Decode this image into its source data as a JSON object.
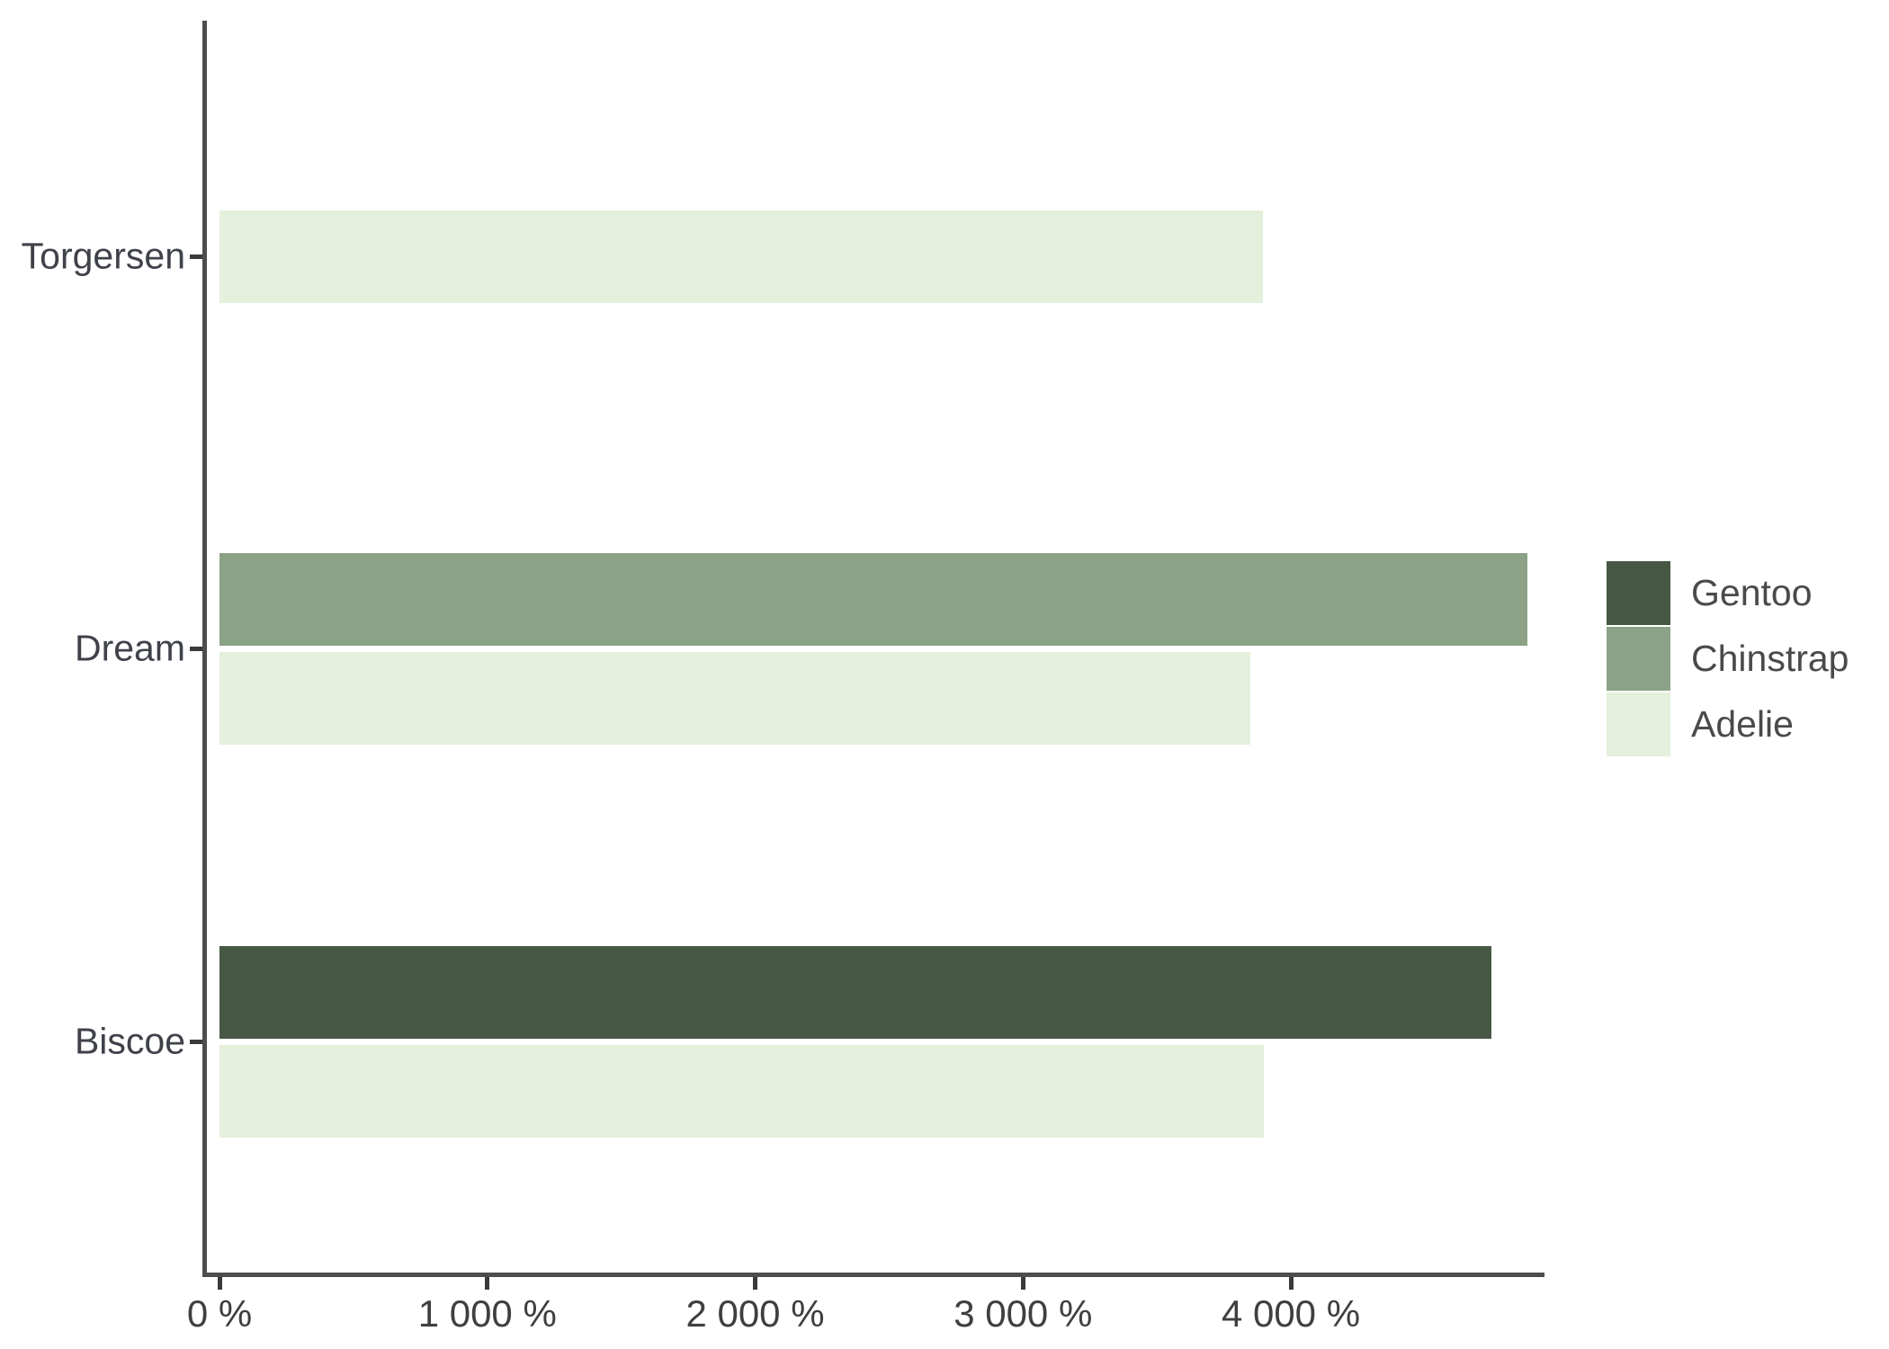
{
  "chart_data": {
    "type": "bar",
    "orientation": "horizontal",
    "title": "",
    "xlabel": "",
    "ylabel": "",
    "value_unit": "percent",
    "x_axis": {
      "min": 0,
      "max_tick": 4000,
      "ticks": [
        0,
        1000,
        2000,
        3000,
        4000
      ],
      "tick_labels": [
        "0 %",
        "1 000 %",
        "2 000 %",
        "3 000 %",
        "4 000 %"
      ]
    },
    "y_categories": [
      "Torgersen",
      "Dream",
      "Biscoe"
    ],
    "groups": [
      {
        "island": "Torgersen",
        "bars": [
          {
            "species": "Adelie",
            "value": 3895
          }
        ]
      },
      {
        "island": "Dream",
        "bars": [
          {
            "species": "Chinstrap",
            "value": 4883
          },
          {
            "species": "Adelie",
            "value": 3850
          }
        ]
      },
      {
        "island": "Biscoe",
        "bars": [
          {
            "species": "Gentoo",
            "value": 4750
          },
          {
            "species": "Adelie",
            "value": 3898
          }
        ]
      }
    ],
    "legend": {
      "position": "right",
      "entries": [
        {
          "label": "Gentoo",
          "color": "#465843"
        },
        {
          "label": "Chinstrap",
          "color": "#8BA287"
        },
        {
          "label": "Adelie",
          "color": "#E4F0DC"
        }
      ]
    },
    "grid": false,
    "colors": {
      "axis_line": "#4d4d4d",
      "tick_mark": "#3a3a3a",
      "axis_text": "#3f3f3f",
      "legend_text": "#4a4a4a",
      "background": "#ffffff"
    }
  }
}
